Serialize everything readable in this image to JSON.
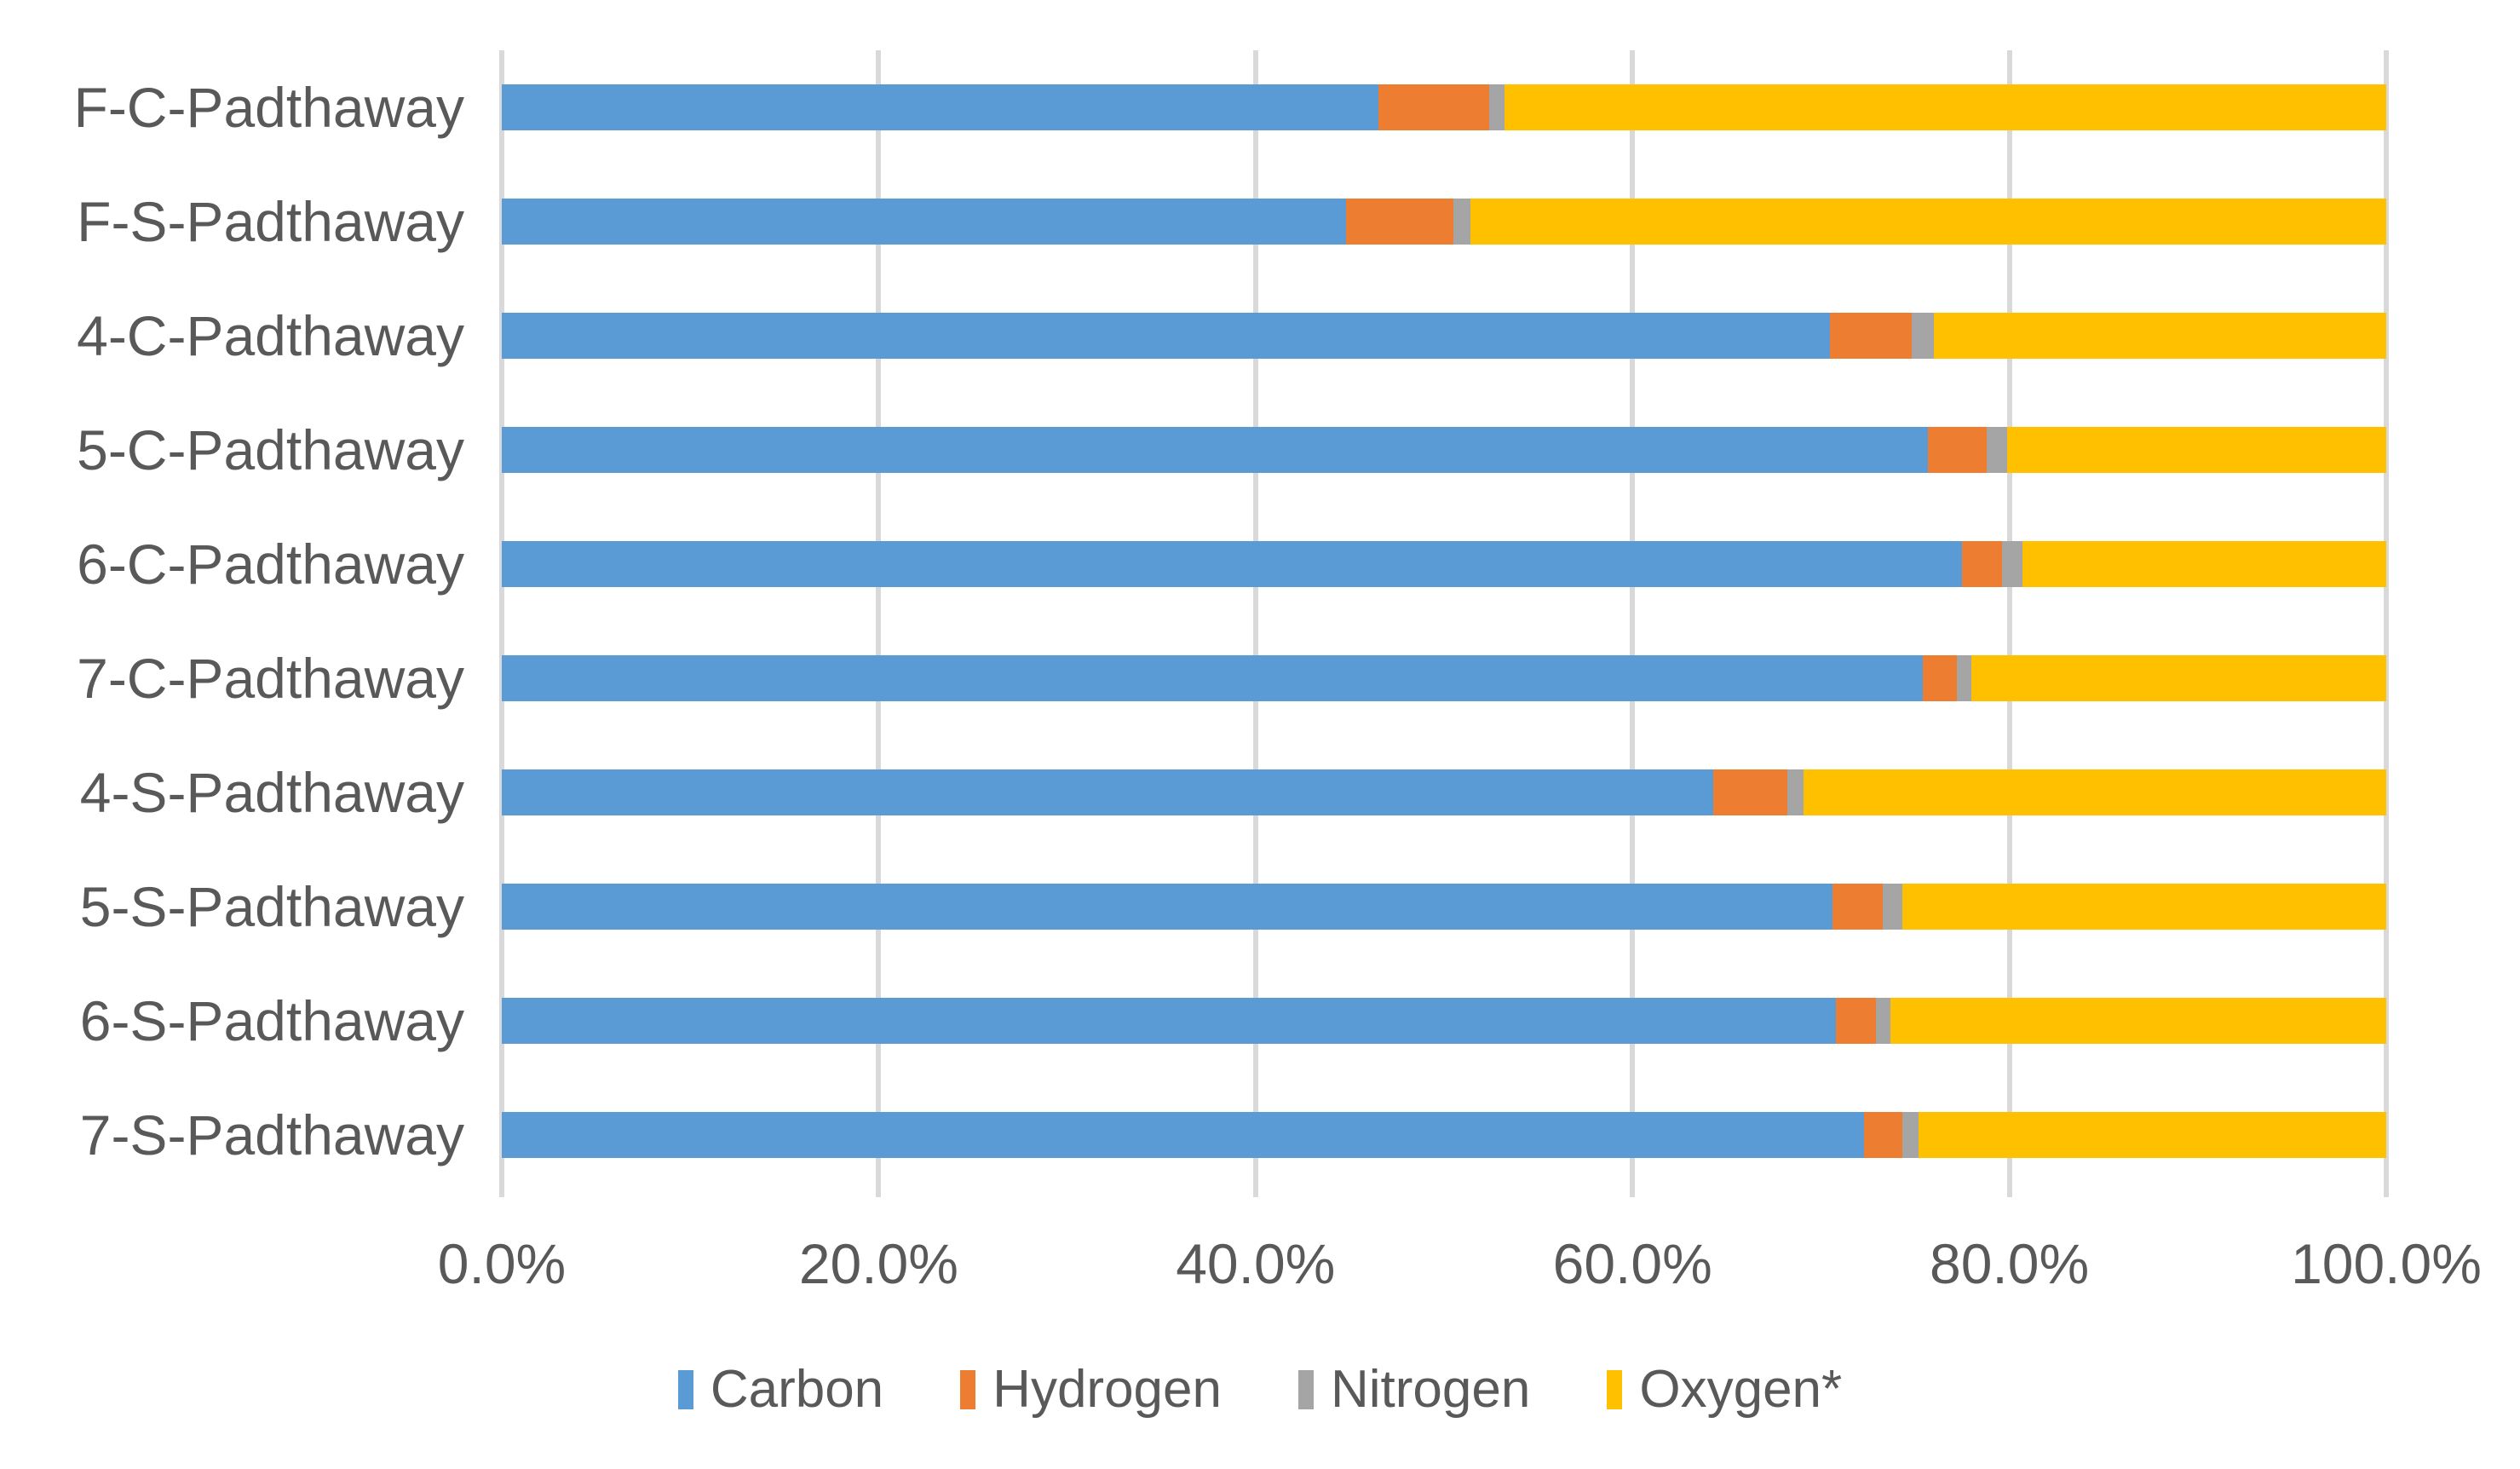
{
  "chart_data": {
    "type": "bar",
    "orientation": "horizontal",
    "stacked": true,
    "stack_total": 100,
    "title": "",
    "categories": [
      "F-C-Padthaway",
      "F-S-Padthaway",
      "4-C-Padthaway",
      "5-C-Padthaway",
      "6-C-Padthaway",
      "7-C-Padthaway",
      "4-S-Padthaway",
      "5-S-Padthaway",
      "6-S-Padthaway",
      "7-S-Padthaway"
    ],
    "series": [
      {
        "name": "Carbon",
        "color": "#5B9BD5",
        "values": [
          46.5,
          44.8,
          70.5,
          75.7,
          77.5,
          75.4,
          64.3,
          70.6,
          70.8,
          72.3
        ]
      },
      {
        "name": "Hydrogen",
        "color": "#ED7D31",
        "values": [
          5.9,
          5.7,
          4.3,
          3.1,
          2.1,
          1.8,
          3.9,
          2.7,
          2.1,
          2.0
        ]
      },
      {
        "name": "Nitrogen",
        "color": "#A5A5A5",
        "values": [
          0.8,
          0.9,
          1.2,
          1.1,
          1.1,
          0.8,
          0.9,
          1.0,
          0.8,
          0.9
        ]
      },
      {
        "name": "Oxygen*",
        "color": "#FFC000",
        "values": [
          46.8,
          48.6,
          24.0,
          20.1,
          19.3,
          22.0,
          30.9,
          25.7,
          26.3,
          24.8
        ]
      }
    ],
    "x_axis": {
      "min": 0,
      "max": 100,
      "tick_values": [
        0,
        20,
        40,
        60,
        80,
        100
      ],
      "tick_labels": [
        "0.0%",
        "20.0%",
        "40.0%",
        "60.0%",
        "80.0%",
        "100.0%"
      ]
    },
    "grid": true,
    "legend": {
      "position": "bottom",
      "entries": [
        "Carbon",
        "Hydrogen",
        "Nitrogen",
        "Oxygen*"
      ]
    }
  },
  "colors": {
    "gridline": "#D9D9D9",
    "axis_text": "#595959",
    "background": "#FFFFFF"
  }
}
